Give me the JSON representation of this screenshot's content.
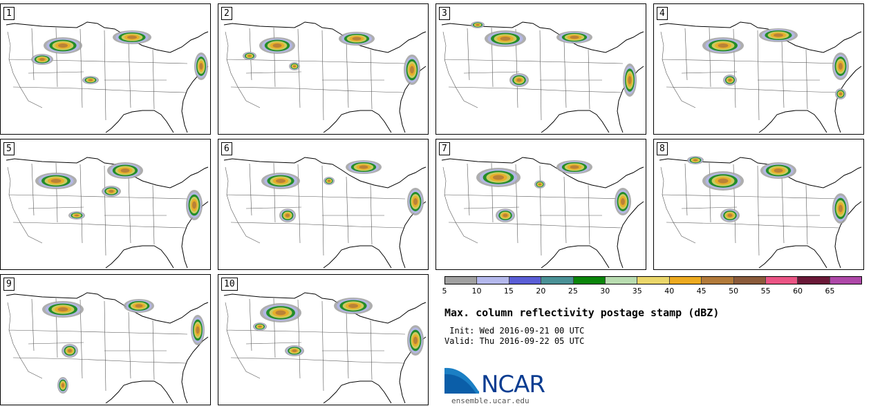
{
  "panels": [
    {
      "label": "1"
    },
    {
      "label": "2"
    },
    {
      "label": "3"
    },
    {
      "label": "4"
    },
    {
      "label": "5"
    },
    {
      "label": "6"
    },
    {
      "label": "7"
    },
    {
      "label": "8"
    },
    {
      "label": "9"
    },
    {
      "label": "10"
    }
  ],
  "colorbar": {
    "colors": [
      "#a0a0a0",
      "#b4b8ec",
      "#5a5ed6",
      "#4a9196",
      "#0a850a",
      "#b8dcb0",
      "#ead66a",
      "#ecaa20",
      "#b27a3a",
      "#8a5a3a",
      "#ea5484",
      "#6a1838",
      "#ae48a8"
    ],
    "ticks": [
      "5",
      "10",
      "15",
      "20",
      "25",
      "30",
      "35",
      "40",
      "45",
      "50",
      "55",
      "60",
      "65"
    ]
  },
  "title": "Max. column reflectivity postage stamp (dBZ)",
  "init": " Init: Wed 2016-09-21 00 UTC",
  "valid": "Valid: Thu 2016-09-22 05 UTC",
  "logo": {
    "name": "NCAR",
    "site": "ensemble.ucar.edu"
  }
}
